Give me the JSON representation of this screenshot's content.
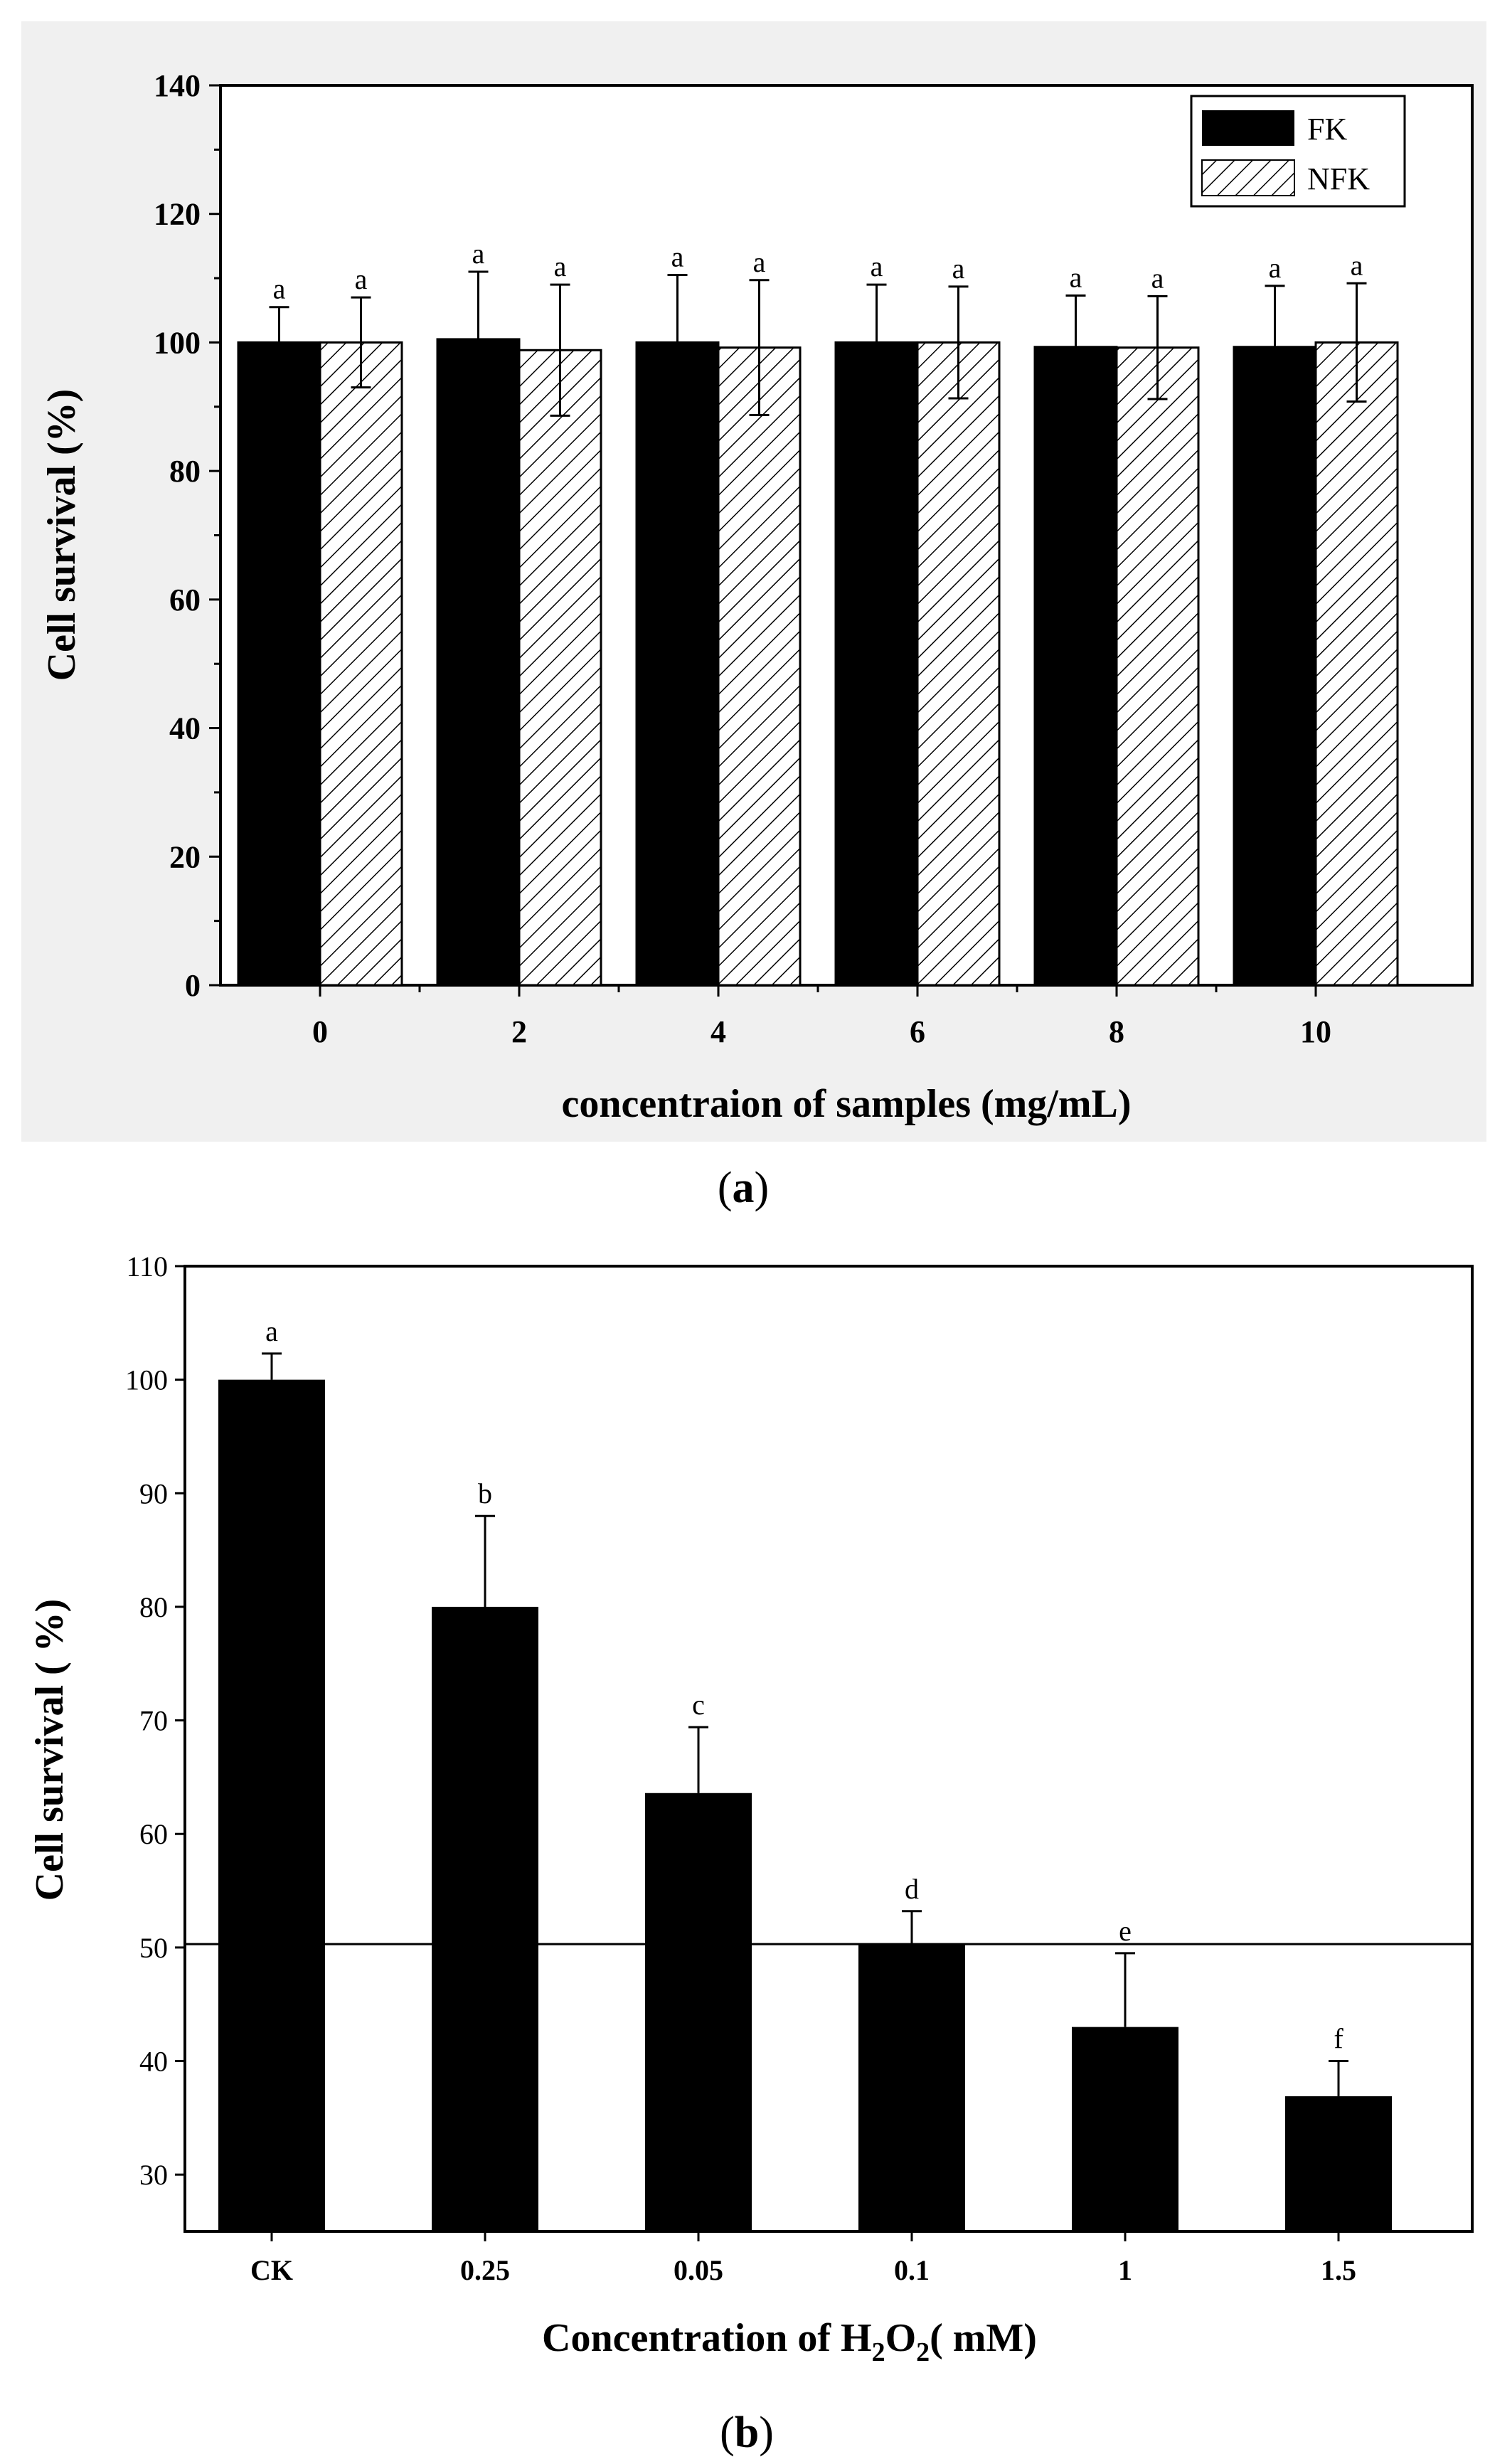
{
  "chart_data": [
    {
      "type": "bar",
      "categories": [
        "0",
        "2",
        "4",
        "6",
        "8",
        "10"
      ],
      "series": [
        {
          "name": "FK",
          "values": [
            100,
            100.5,
            100,
            100,
            99.3,
            99.3
          ],
          "errors": [
            5.5,
            10.5,
            10.5,
            9.0,
            8.0,
            9.5
          ],
          "labels": [
            "a",
            "a",
            "a",
            "a",
            "a",
            "a"
          ]
        },
        {
          "name": "NFK",
          "values": [
            100,
            98.8,
            99.2,
            100,
            99.2,
            100
          ],
          "errors": [
            7.0,
            10.2,
            10.5,
            8.7,
            8.0,
            9.2
          ],
          "labels": [
            "a",
            "a",
            "a",
            "a",
            "a",
            "a"
          ]
        }
      ],
      "ylim": [
        0,
        140
      ],
      "yticks": [
        0,
        20,
        40,
        60,
        80,
        100,
        120,
        140
      ],
      "ytick_labels": [
        "0",
        "20",
        "40",
        "60",
        "80",
        "100",
        "120",
        "140"
      ],
      "xlabel": "concentraion of samples (mg/mL)",
      "ylabel": "Cell survival (%)",
      "legend_position": "top-right",
      "caption": {
        "open": "(",
        "letter": "a",
        "close": ")"
      }
    },
    {
      "type": "bar",
      "categories": [
        "CK",
        "0.25",
        "0.05",
        "0.1",
        "1",
        "1.5"
      ],
      "series": [
        {
          "name": "Cell survival",
          "values": [
            100,
            80,
            63.6,
            50.3,
            43,
            36.9
          ],
          "errors": [
            2.3,
            8.0,
            5.8,
            2.9,
            6.5,
            3.1
          ],
          "labels": [
            "a",
            "b",
            "c",
            "d",
            "e",
            "f"
          ]
        }
      ],
      "ylim": [
        25,
        110
      ],
      "yticks": [
        30,
        40,
        50,
        60,
        70,
        80,
        90,
        100,
        110
      ],
      "ytick_labels": [
        "30",
        "40",
        "50",
        "60",
        "70",
        "80",
        "90",
        "100",
        "110"
      ],
      "reference_line": 50.3,
      "xlabel": {
        "pre": "Concentration of H",
        "sub1": "2",
        "mid": "O",
        "sub2": "2",
        "post": "(  mM)"
      },
      "ylabel": "Cell survival (  %)",
      "caption": {
        "open": "(",
        "letter": "b",
        "close": ")"
      }
    }
  ]
}
